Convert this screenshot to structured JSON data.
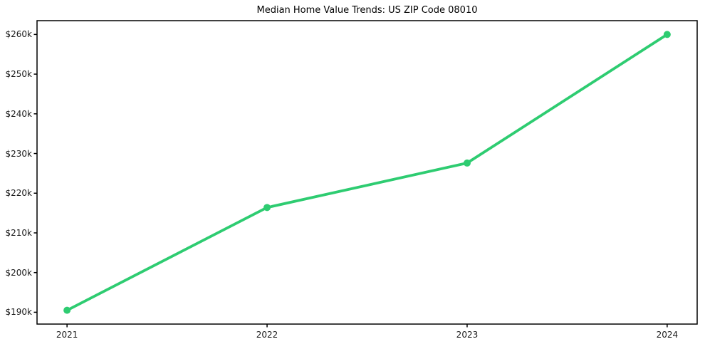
{
  "chart_data": {
    "type": "line",
    "title": "Median Home Value Trends: US ZIP Code 08010",
    "x": [
      2021,
      2022,
      2023,
      2024
    ],
    "x_tick_labels": [
      "2021",
      "2022",
      "2023",
      "2024"
    ],
    "series": [
      {
        "name": "Median Home Value",
        "values": [
          190500,
          216400,
          227600,
          260000
        ]
      }
    ],
    "y_tick_values": [
      190000,
      200000,
      210000,
      220000,
      230000,
      240000,
      250000,
      260000
    ],
    "y_tick_labels": [
      "$190k",
      "$200k",
      "$210k",
      "$220k",
      "$230k",
      "$240k",
      "$250k",
      "$260k"
    ],
    "xlim": [
      2020.85,
      2024.15
    ],
    "ylim": [
      187025,
      263475
    ],
    "grid": false,
    "legend": "none",
    "line_color": "#2ecc71",
    "marker": "circle",
    "axis_color": "#000000",
    "text_color": "#1a1a1a",
    "background": "#ffffff"
  }
}
